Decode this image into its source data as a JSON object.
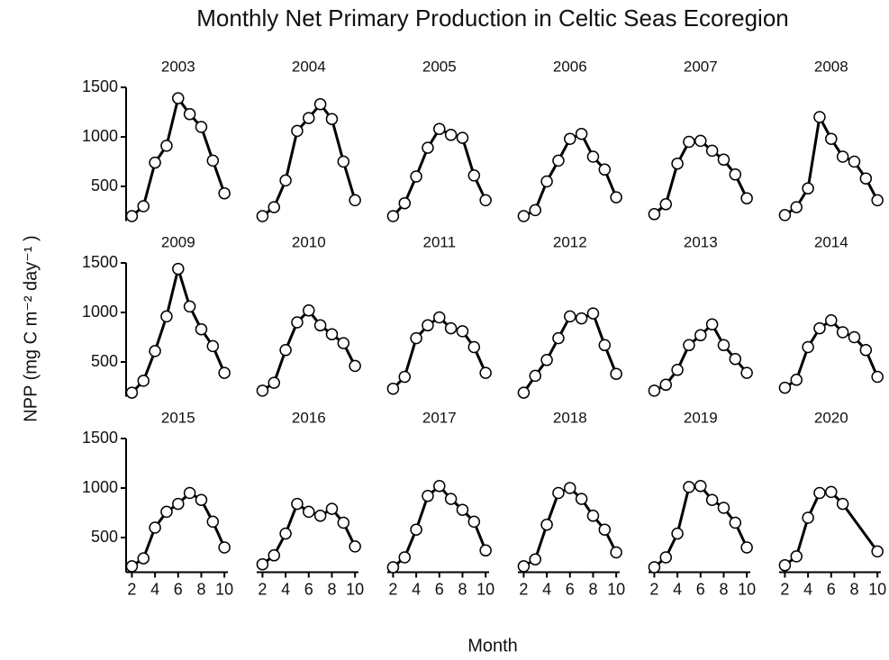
{
  "title": "Monthly Net Primary Production in Celtic Seas Ecoregion",
  "x_label": "Month",
  "y_label": "NPP (mg C m⁻² day⁻¹ )",
  "chart_data": [
    {
      "type": "line",
      "title": "2003",
      "x": [
        2,
        3,
        4,
        5,
        6,
        7,
        8,
        9,
        10
      ],
      "values": [
        200,
        300,
        740,
        910,
        1390,
        1230,
        1100,
        760,
        430
      ],
      "xlim": [
        1.5,
        10.3
      ],
      "ylim": [
        150,
        1500
      ],
      "yticks": [
        500,
        1000,
        1500
      ],
      "color": "#000000"
    },
    {
      "type": "line",
      "title": "2004",
      "x": [
        2,
        3,
        4,
        5,
        6,
        7,
        8,
        9,
        10
      ],
      "values": [
        200,
        290,
        560,
        1060,
        1190,
        1330,
        1180,
        750,
        360
      ],
      "xlim": [
        1.5,
        10.3
      ],
      "ylim": [
        150,
        1500
      ],
      "color": "#000000"
    },
    {
      "type": "line",
      "title": "2005",
      "x": [
        2,
        3,
        4,
        5,
        6,
        7,
        8,
        9,
        10
      ],
      "values": [
        200,
        330,
        600,
        890,
        1080,
        1020,
        990,
        610,
        360
      ],
      "xlim": [
        1.5,
        10.3
      ],
      "ylim": [
        150,
        1500
      ],
      "color": "#000000"
    },
    {
      "type": "line",
      "title": "2006",
      "x": [
        2,
        3,
        4,
        5,
        6,
        7,
        8,
        9,
        10
      ],
      "values": [
        200,
        260,
        550,
        760,
        980,
        1030,
        800,
        670,
        390
      ],
      "xlim": [
        1.5,
        10.3
      ],
      "ylim": [
        150,
        1500
      ],
      "color": "#000000"
    },
    {
      "type": "line",
      "title": "2007",
      "x": [
        2,
        3,
        4,
        5,
        6,
        7,
        8,
        9,
        10
      ],
      "values": [
        220,
        320,
        730,
        950,
        960,
        860,
        770,
        620,
        380
      ],
      "xlim": [
        1.5,
        10.3
      ],
      "ylim": [
        150,
        1500
      ],
      "color": "#000000"
    },
    {
      "type": "line",
      "title": "2008",
      "x": [
        2,
        3,
        4,
        5,
        6,
        7,
        8,
        9,
        10
      ],
      "values": [
        210,
        290,
        480,
        1200,
        980,
        800,
        750,
        580,
        360
      ],
      "xlim": [
        1.5,
        10.3
      ],
      "ylim": [
        150,
        1500
      ],
      "color": "#000000"
    },
    {
      "type": "line",
      "title": "2009",
      "x": [
        2,
        3,
        4,
        5,
        6,
        7,
        8,
        9,
        10
      ],
      "values": [
        190,
        310,
        610,
        960,
        1440,
        1060,
        830,
        660,
        390
      ],
      "xlim": [
        1.5,
        10.3
      ],
      "ylim": [
        150,
        1500
      ],
      "yticks": [
        500,
        1000,
        1500
      ],
      "color": "#000000"
    },
    {
      "type": "line",
      "title": "2010",
      "x": [
        2,
        3,
        4,
        5,
        6,
        7,
        8,
        9,
        10
      ],
      "values": [
        210,
        290,
        620,
        900,
        1020,
        870,
        780,
        690,
        460
      ],
      "xlim": [
        1.5,
        10.3
      ],
      "ylim": [
        150,
        1500
      ],
      "color": "#000000"
    },
    {
      "type": "line",
      "title": "2011",
      "x": [
        2,
        3,
        4,
        5,
        6,
        7,
        8,
        9,
        10
      ],
      "values": [
        230,
        350,
        740,
        870,
        950,
        840,
        810,
        650,
        390
      ],
      "xlim": [
        1.5,
        10.3
      ],
      "ylim": [
        150,
        1500
      ],
      "color": "#000000"
    },
    {
      "type": "line",
      "title": "2012",
      "x": [
        2,
        3,
        4,
        5,
        6,
        7,
        8,
        9,
        10
      ],
      "values": [
        190,
        360,
        520,
        740,
        960,
        940,
        990,
        670,
        380
      ],
      "xlim": [
        1.5,
        10.3
      ],
      "ylim": [
        150,
        1500
      ],
      "color": "#000000"
    },
    {
      "type": "line",
      "title": "2013",
      "x": [
        2,
        3,
        4,
        5,
        6,
        7,
        8,
        9,
        10
      ],
      "values": [
        210,
        270,
        420,
        670,
        770,
        880,
        670,
        530,
        390
      ],
      "xlim": [
        1.5,
        10.3
      ],
      "ylim": [
        150,
        1500
      ],
      "color": "#000000"
    },
    {
      "type": "line",
      "title": "2014",
      "x": [
        2,
        3,
        4,
        5,
        6,
        7,
        8,
        9,
        10
      ],
      "values": [
        240,
        320,
        650,
        840,
        920,
        800,
        750,
        620,
        350
      ],
      "xlim": [
        1.5,
        10.3
      ],
      "ylim": [
        150,
        1500
      ],
      "color": "#000000"
    },
    {
      "type": "line",
      "title": "2015",
      "x": [
        2,
        3,
        4,
        5,
        6,
        7,
        8,
        9,
        10
      ],
      "values": [
        210,
        290,
        600,
        760,
        840,
        950,
        880,
        660,
        400
      ],
      "xlim": [
        1.5,
        10.3
      ],
      "ylim": [
        150,
        1500
      ],
      "yticks": [
        500,
        1000,
        1500
      ],
      "xticks": [
        2,
        4,
        6,
        8,
        10
      ],
      "color": "#000000"
    },
    {
      "type": "line",
      "title": "2016",
      "x": [
        2,
        3,
        4,
        5,
        6,
        7,
        8,
        9,
        10
      ],
      "values": [
        230,
        320,
        540,
        840,
        760,
        720,
        790,
        650,
        410
      ],
      "xlim": [
        1.5,
        10.3
      ],
      "ylim": [
        150,
        1500
      ],
      "xticks": [
        2,
        4,
        6,
        8,
        10
      ],
      "color": "#000000"
    },
    {
      "type": "line",
      "title": "2017",
      "x": [
        2,
        3,
        4,
        5,
        6,
        7,
        8,
        9,
        10
      ],
      "values": [
        200,
        300,
        580,
        920,
        1020,
        890,
        780,
        660,
        370
      ],
      "xlim": [
        1.5,
        10.3
      ],
      "ylim": [
        150,
        1500
      ],
      "xticks": [
        2,
        4,
        6,
        8,
        10
      ],
      "color": "#000000"
    },
    {
      "type": "line",
      "title": "2018",
      "x": [
        2,
        3,
        4,
        5,
        6,
        7,
        8,
        9,
        10
      ],
      "values": [
        210,
        280,
        630,
        950,
        1000,
        890,
        720,
        580,
        350
      ],
      "xlim": [
        1.5,
        10.3
      ],
      "ylim": [
        150,
        1500
      ],
      "xticks": [
        2,
        4,
        6,
        8,
        10
      ],
      "color": "#000000"
    },
    {
      "type": "line",
      "title": "2019",
      "x": [
        2,
        3,
        4,
        5,
        6,
        7,
        8,
        9,
        10
      ],
      "values": [
        200,
        300,
        540,
        1010,
        1020,
        880,
        800,
        650,
        400
      ],
      "xlim": [
        1.5,
        10.3
      ],
      "ylim": [
        150,
        1500
      ],
      "xticks": [
        2,
        4,
        6,
        8,
        10
      ],
      "color": "#000000"
    },
    {
      "type": "line",
      "title": "2020",
      "x": [
        2,
        3,
        4,
        5,
        6,
        7,
        10
      ],
      "values": [
        220,
        310,
        700,
        950,
        960,
        840,
        360
      ],
      "xlim": [
        1.5,
        10.3
      ],
      "ylim": [
        150,
        1500
      ],
      "xticks": [
        2,
        4,
        6,
        8,
        10
      ],
      "color": "#000000"
    }
  ]
}
